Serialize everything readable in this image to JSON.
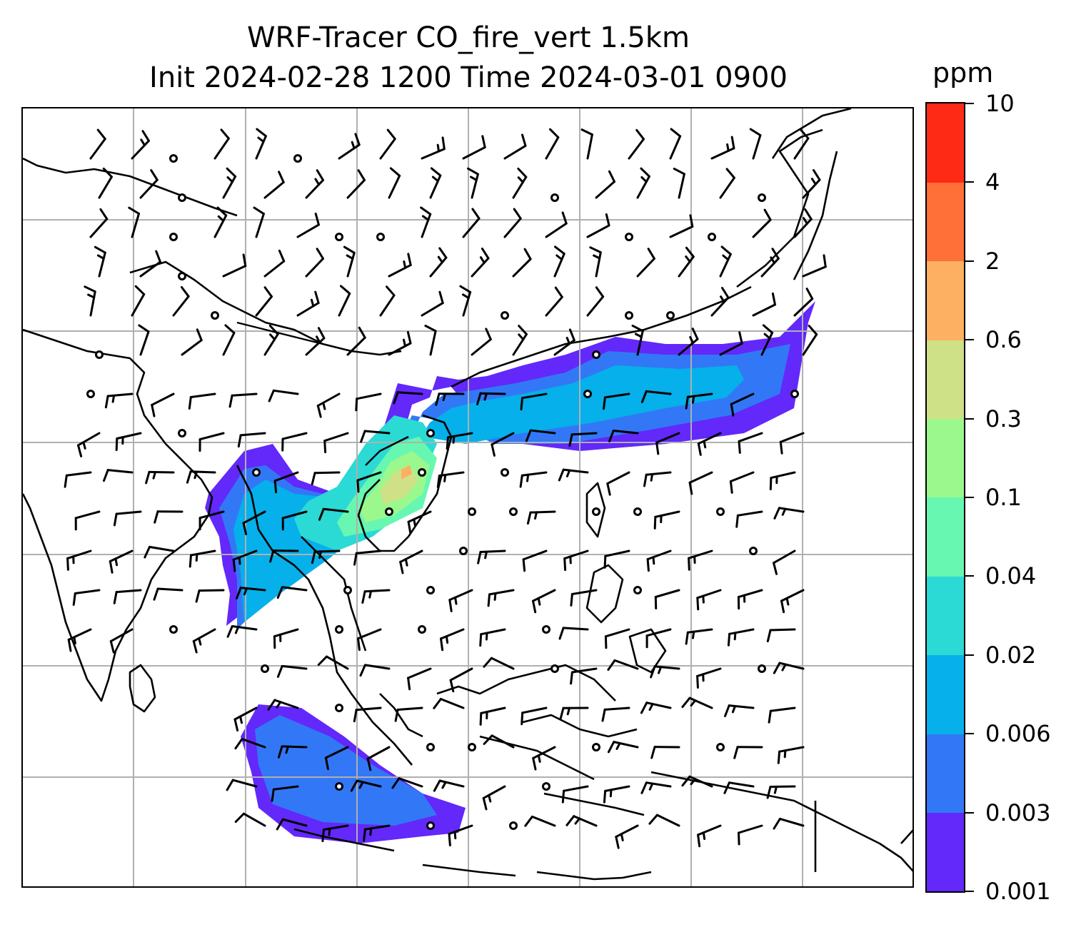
{
  "title": {
    "line1": "WRF-Tracer CO_fire_vert 1.5km",
    "line2": "Init 2024-02-28 1200 Time 2024-03-01 0900"
  },
  "colorbar": {
    "unit": "ppm",
    "levels": [
      "0.001",
      "0.003",
      "0.006",
      "0.02",
      "0.04",
      "0.1",
      "0.3",
      "0.6",
      "2",
      "4",
      "10"
    ],
    "colors": [
      "#6328fa",
      "#3278f6",
      "#06b0ea",
      "#2bdad4",
      "#68f7b1",
      "#9af88c",
      "#cfe187",
      "#fdb062",
      "#ff7039",
      "#ff2a15"
    ]
  },
  "map": {
    "gridlines": true,
    "features": [
      "coastlines",
      "country-borders",
      "wind-barbs",
      "calm-wind-circles",
      "tracer-concentration-fill"
    ]
  }
}
